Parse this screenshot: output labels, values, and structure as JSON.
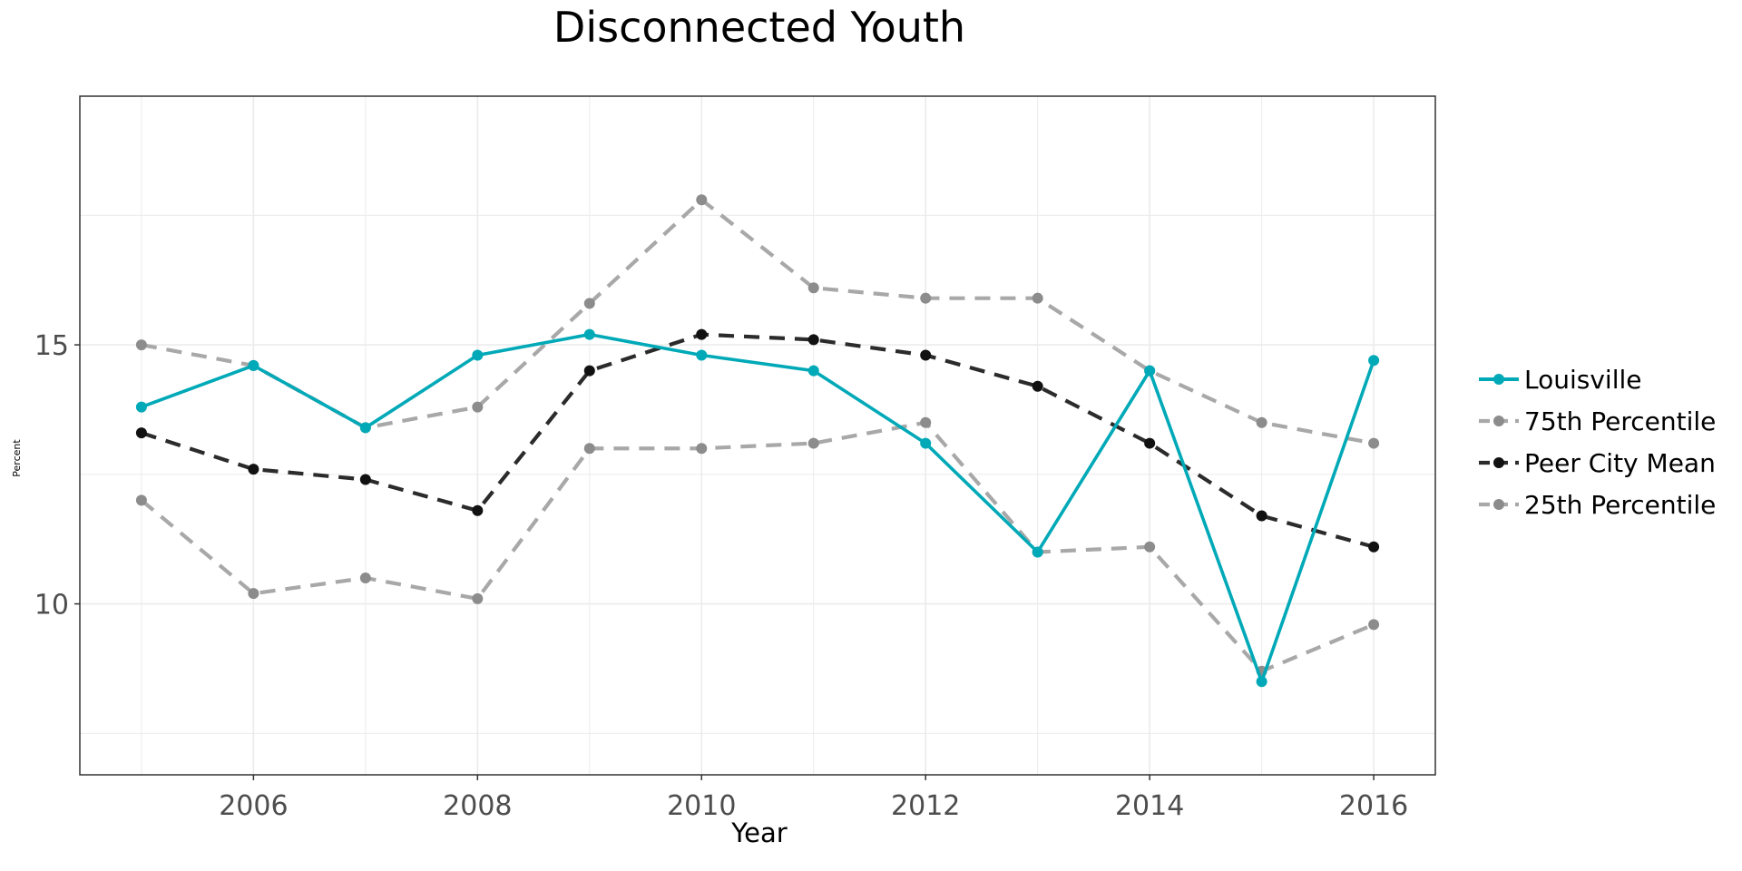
{
  "chart_data": {
    "type": "line",
    "title": "Disconnected Youth",
    "xlabel": "Year",
    "ylabel": "Percent",
    "x": [
      2005,
      2006,
      2007,
      2008,
      2009,
      2010,
      2011,
      2012,
      2013,
      2014,
      2015,
      2016
    ],
    "xlim": [
      2004.45,
      2016.55
    ],
    "ylim": [
      6.7,
      19.8
    ],
    "x_ticks": [
      2006,
      2008,
      2010,
      2012,
      2014,
      2016
    ],
    "y_ticks": [
      10,
      15
    ],
    "grid": true,
    "legend_position": "right",
    "series": [
      {
        "name": "Louisville",
        "style": "solid",
        "color": "#00a9b7",
        "values": [
          13.8,
          14.6,
          13.4,
          14.8,
          15.2,
          14.8,
          14.5,
          13.1,
          11.0,
          14.5,
          8.5,
          14.7
        ]
      },
      {
        "name": "75th Percentile",
        "style": "dashed",
        "color": "#a8a8a8",
        "values": [
          15.0,
          14.6,
          13.4,
          13.8,
          15.8,
          17.8,
          16.1,
          15.9,
          15.9,
          14.5,
          13.5,
          13.1
        ]
      },
      {
        "name": "Peer City Mean",
        "style": "dashed",
        "color": "#2b2b2b",
        "values": [
          13.3,
          12.6,
          12.4,
          11.8,
          14.5,
          15.2,
          15.1,
          14.8,
          14.2,
          13.1,
          11.7,
          11.1
        ]
      },
      {
        "name": "25th Percentile",
        "style": "dashed",
        "color": "#a8a8a8",
        "values": [
          12.0,
          10.2,
          10.5,
          10.1,
          13.0,
          13.0,
          13.1,
          13.5,
          11.0,
          11.1,
          8.7,
          9.6
        ]
      }
    ]
  }
}
